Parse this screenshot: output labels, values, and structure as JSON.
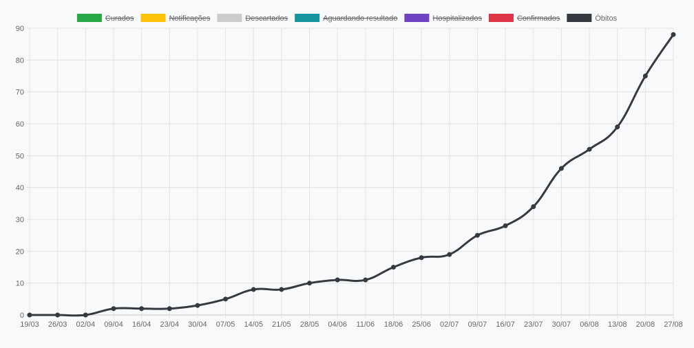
{
  "chart_data": {
    "type": "line",
    "title": "",
    "xlabel": "",
    "ylabel": "",
    "ylim": [
      0,
      90
    ],
    "y_ticks": [
      0,
      10,
      20,
      30,
      40,
      50,
      60,
      70,
      80,
      90
    ],
    "grid": true,
    "legend_position": "top",
    "categories": [
      "19/03",
      "26/03",
      "02/04",
      "09/04",
      "16/04",
      "23/04",
      "30/04",
      "07/05",
      "14/05",
      "21/05",
      "28/05",
      "04/06",
      "11/06",
      "18/06",
      "25/06",
      "02/07",
      "09/07",
      "16/07",
      "23/07",
      "30/07",
      "06/08",
      "13/08",
      "20/08",
      "27/08"
    ],
    "legend": [
      {
        "label": "Curados",
        "color": "#28a745",
        "hidden": true
      },
      {
        "label": "Notificações",
        "color": "#ffc107",
        "hidden": true
      },
      {
        "label": "Descartados",
        "color": "#cccccc",
        "hidden": true
      },
      {
        "label": "Aguardando resultado",
        "color": "#17959e",
        "hidden": true
      },
      {
        "label": "Hospitalizados",
        "color": "#6f42c1",
        "hidden": true
      },
      {
        "label": "Confirmados",
        "color": "#dc3545",
        "hidden": true
      },
      {
        "label": "Óbitos",
        "color": "#343a40",
        "hidden": false
      }
    ],
    "series": [
      {
        "name": "Óbitos",
        "color": "#343a40",
        "values": [
          0,
          0,
          0,
          2,
          2,
          2,
          3,
          5,
          8,
          8,
          10,
          11,
          11,
          15,
          18,
          19,
          25,
          28,
          34,
          46,
          52,
          59,
          75,
          88
        ]
      }
    ]
  }
}
